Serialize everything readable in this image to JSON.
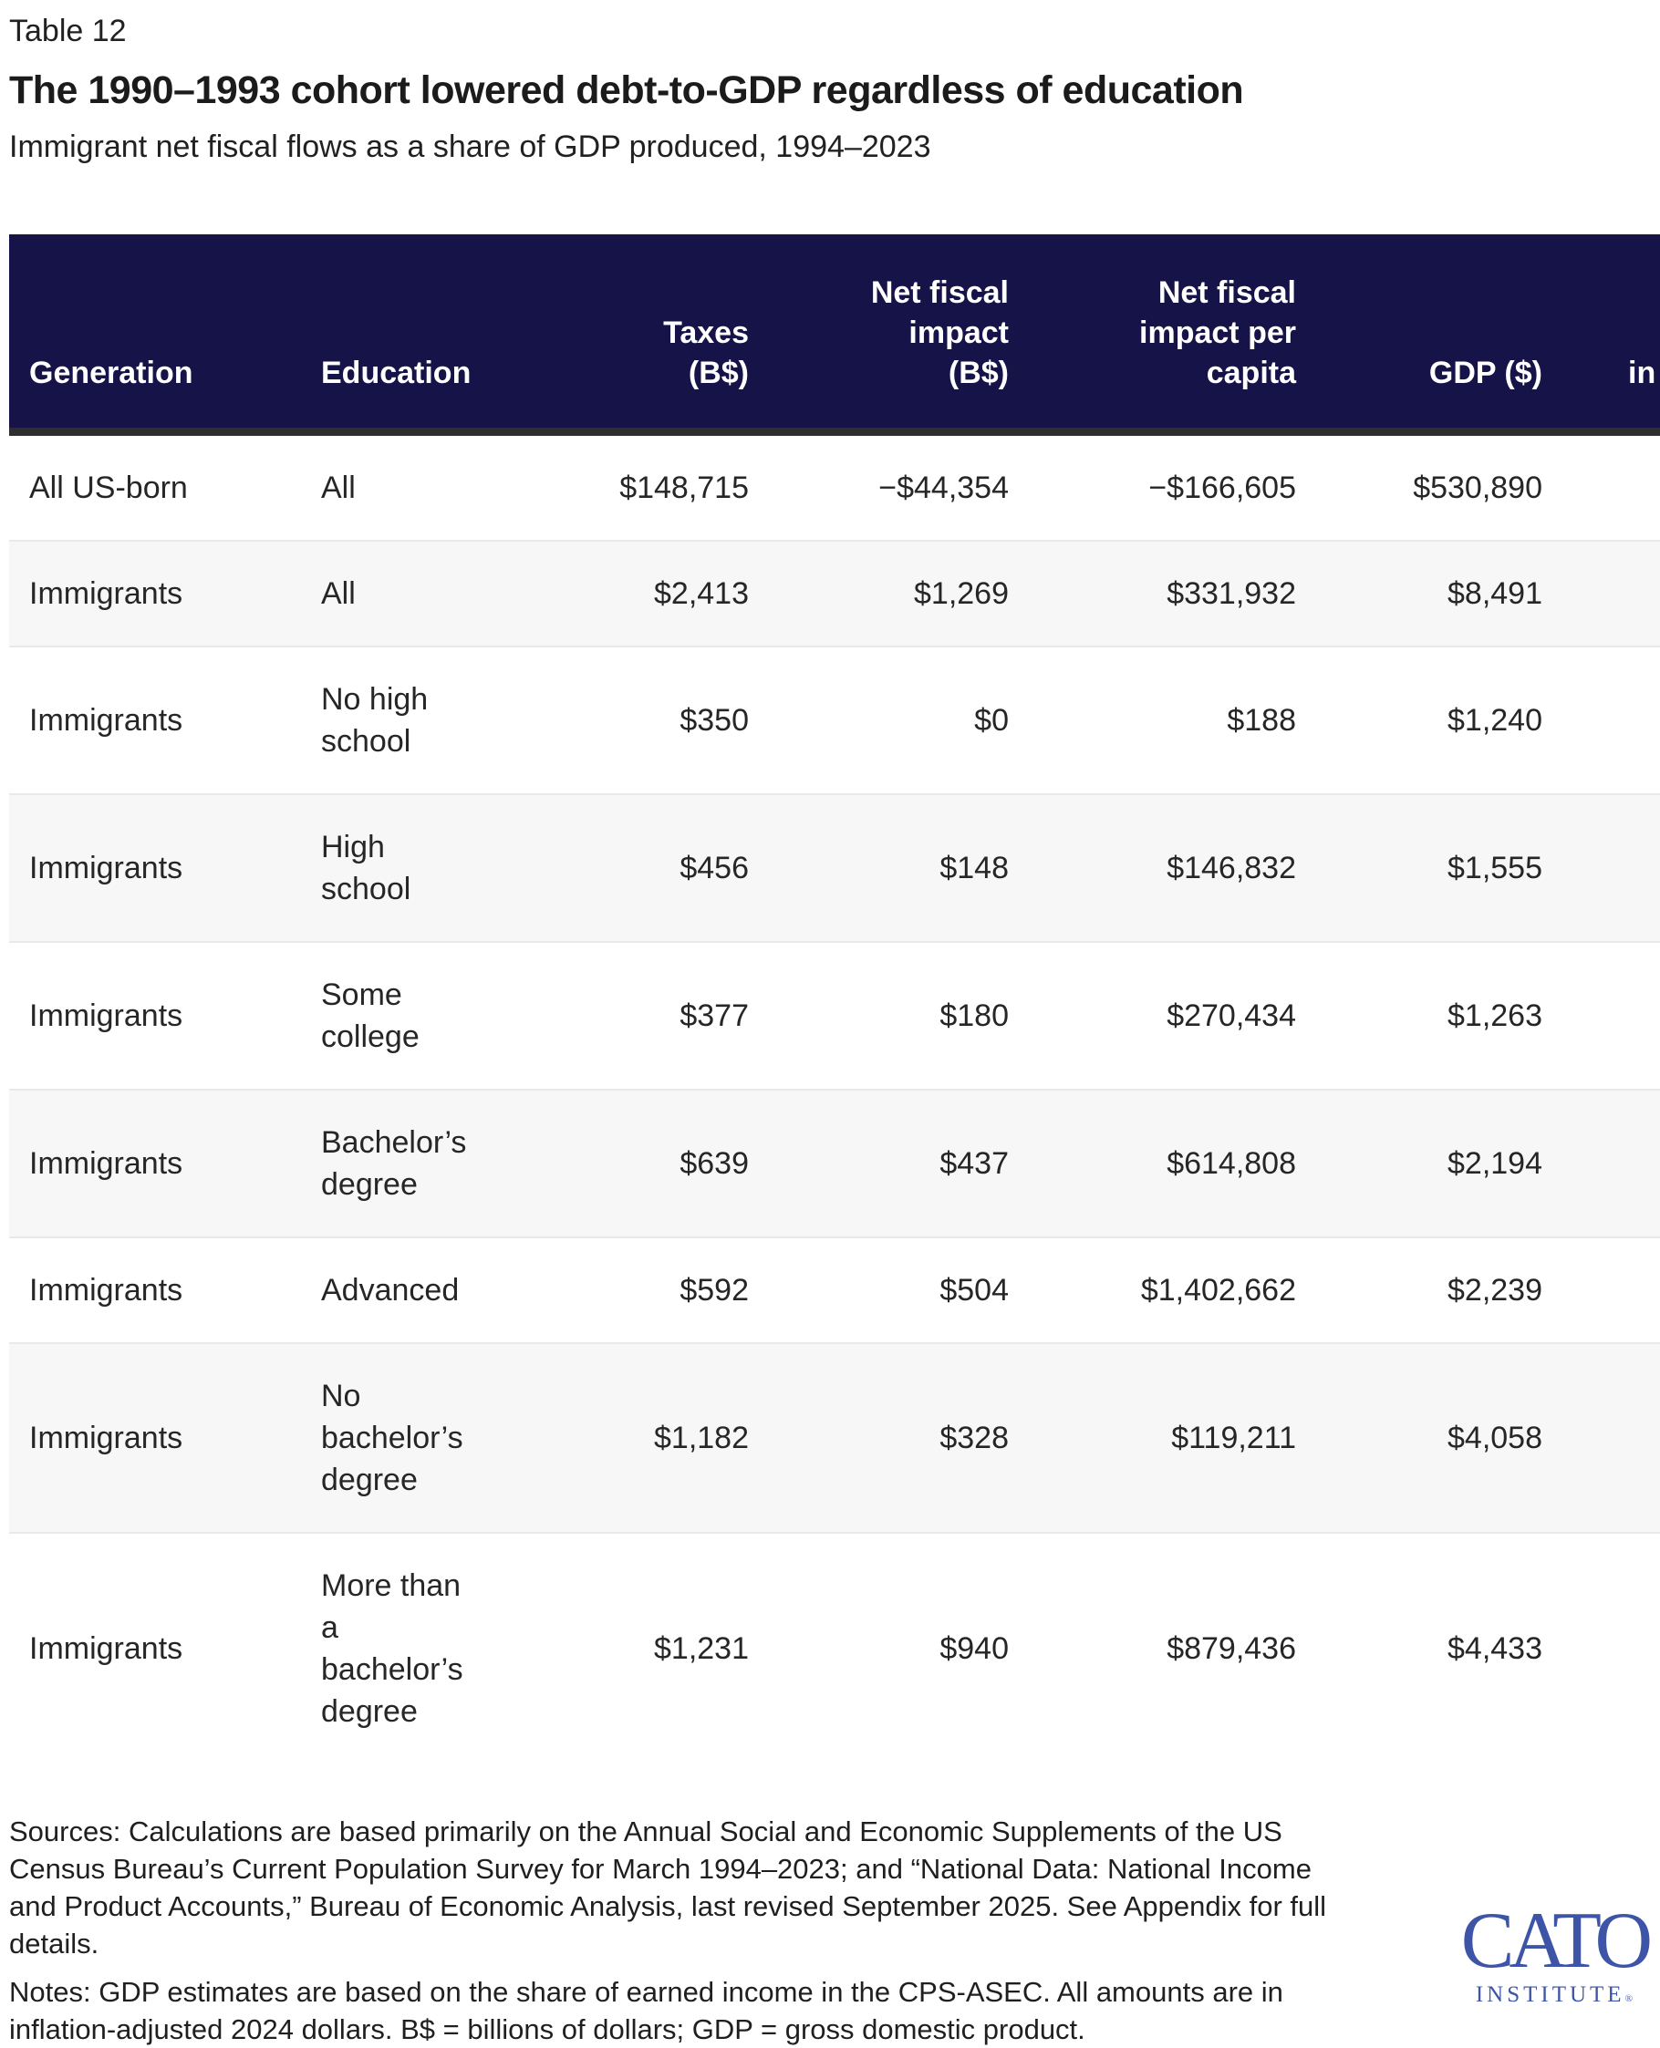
{
  "page": {
    "table_label": "Table 12",
    "title": "The 1990–1993 cohort lowered debt-to-GDP regardless of education",
    "subtitle": "Immigrant net fiscal flows as a share of GDP produced, 1994–2023"
  },
  "colors": {
    "header_navy": "#161349",
    "header_bottom_border": "#2e2e2e",
    "alt_row_gray": "#f7f7f7",
    "row_divider": "#e9e9e9",
    "logo_blue": "#3e55a7"
  },
  "table": {
    "columns": [
      {
        "lines": [
          "Generation"
        ]
      },
      {
        "lines": [
          "Education"
        ]
      },
      {
        "lines": [
          "Taxes",
          "(B$)"
        ]
      },
      {
        "lines": [
          "Net fiscal",
          "impact",
          "(B$)"
        ]
      },
      {
        "lines": [
          "Net fiscal",
          "impact per",
          "capita"
        ]
      },
      {
        "lines": [
          "GDP ($)"
        ]
      },
      {
        "lines": [
          "in"
        ]
      }
    ],
    "last_column_visible_fragment": "in",
    "rows": [
      {
        "generation": "All US-born",
        "education_lines": [
          "All"
        ],
        "taxes": "$148,715",
        "net_fiscal_impact": "−$44,354",
        "nfi_per_capita": "−$166,605",
        "gdp": "$530,890"
      },
      {
        "generation": "Immigrants",
        "education_lines": [
          "All"
        ],
        "taxes": "$2,413",
        "net_fiscal_impact": "$1,269",
        "nfi_per_capita": "$331,932",
        "gdp": "$8,491"
      },
      {
        "generation": "Immigrants",
        "education_lines": [
          "No high",
          "school"
        ],
        "taxes": "$350",
        "net_fiscal_impact": "$0",
        "nfi_per_capita": "$188",
        "gdp": "$1,240"
      },
      {
        "generation": "Immigrants",
        "education_lines": [
          "High",
          "school"
        ],
        "taxes": "$456",
        "net_fiscal_impact": "$148",
        "nfi_per_capita": "$146,832",
        "gdp": "$1,555"
      },
      {
        "generation": "Immigrants",
        "education_lines": [
          "Some",
          "college"
        ],
        "taxes": "$377",
        "net_fiscal_impact": "$180",
        "nfi_per_capita": "$270,434",
        "gdp": "$1,263"
      },
      {
        "generation": "Immigrants",
        "education_lines": [
          "Bachelor’s",
          "degree"
        ],
        "taxes": "$639",
        "net_fiscal_impact": "$437",
        "nfi_per_capita": "$614,808",
        "gdp": "$2,194"
      },
      {
        "generation": "Immigrants",
        "education_lines": [
          "Advanced"
        ],
        "taxes": "$592",
        "net_fiscal_impact": "$504",
        "nfi_per_capita": "$1,402,662",
        "gdp": "$2,239"
      },
      {
        "generation": "Immigrants",
        "education_lines": [
          "No",
          "bachelor’s",
          "degree"
        ],
        "taxes": "$1,182",
        "net_fiscal_impact": "$328",
        "nfi_per_capita": "$119,211",
        "gdp": "$4,058"
      },
      {
        "generation": "Immigrants",
        "education_lines": [
          "More than",
          "a",
          "bachelor’s",
          "degree"
        ],
        "taxes": "$1,231",
        "net_fiscal_impact": "$940",
        "nfi_per_capita": "$879,436",
        "gdp": "$4,433"
      }
    ]
  },
  "footer": {
    "sources": "Sources: Calculations are based primarily on the Annual Social and Economic Supplements of the US Census Bureau’s Current Population Survey for March 1994–2023; and “National Data: National Income and Product Accounts,” Bureau of Economic Analysis, last revised September 2025. See Appendix for full details.",
    "notes": "Notes: GDP estimates are based on the share of earned income in the CPS-ASEC. All amounts are in inflation-adjusted 2024 dollars. B$ = billions of dollars; GDP = gross domestic product."
  },
  "logo": {
    "wordmark": "CATO",
    "subtext": "INSTITUTE",
    "registered": "®"
  },
  "chart_data": {
    "type": "table",
    "title": "The 1990–1993 cohort lowered debt-to-GDP regardless of education",
    "subtitle": "Immigrant net fiscal flows as a share of GDP produced, 1994–2023",
    "columns": [
      "Generation",
      "Education",
      "Taxes (B$)",
      "Net fiscal impact (B$)",
      "Net fiscal impact per capita",
      "GDP ($)",
      "in"
    ],
    "rows": [
      [
        "All US-born",
        "All",
        "$148,715",
        "−$44,354",
        "−$166,605",
        "$530,890"
      ],
      [
        "Immigrants",
        "All",
        "$2,413",
        "$1,269",
        "$331,932",
        "$8,491"
      ],
      [
        "Immigrants",
        "No high school",
        "$350",
        "$0",
        "$188",
        "$1,240"
      ],
      [
        "Immigrants",
        "High school",
        "$456",
        "$148",
        "$146,832",
        "$1,555"
      ],
      [
        "Immigrants",
        "Some college",
        "$377",
        "$180",
        "$270,434",
        "$1,263"
      ],
      [
        "Immigrants",
        "Bachelor’s degree",
        "$639",
        "$437",
        "$614,808",
        "$2,194"
      ],
      [
        "Immigrants",
        "Advanced",
        "$592",
        "$504",
        "$1,402,662",
        "$2,239"
      ],
      [
        "Immigrants",
        "No bachelor’s degree",
        "$1,182",
        "$328",
        "$119,211",
        "$4,058"
      ],
      [
        "Immigrants",
        "More than a bachelor’s degree",
        "$1,231",
        "$940",
        "$879,436",
        "$4,433"
      ]
    ],
    "numeric_values_billions": {
      "taxes": [
        148.715,
        2.413,
        0.35,
        0.456,
        0.377,
        0.639,
        0.592,
        1.182,
        1.231
      ],
      "net_fiscal_impact": [
        -44.354,
        1.269,
        0.0,
        0.148,
        0.18,
        0.437,
        0.504,
        0.328,
        0.94
      ]
    },
    "layout_hints": {
      "header_background": "#161349",
      "alternating_rows": true,
      "rightmost_column_truncated": true
    }
  }
}
